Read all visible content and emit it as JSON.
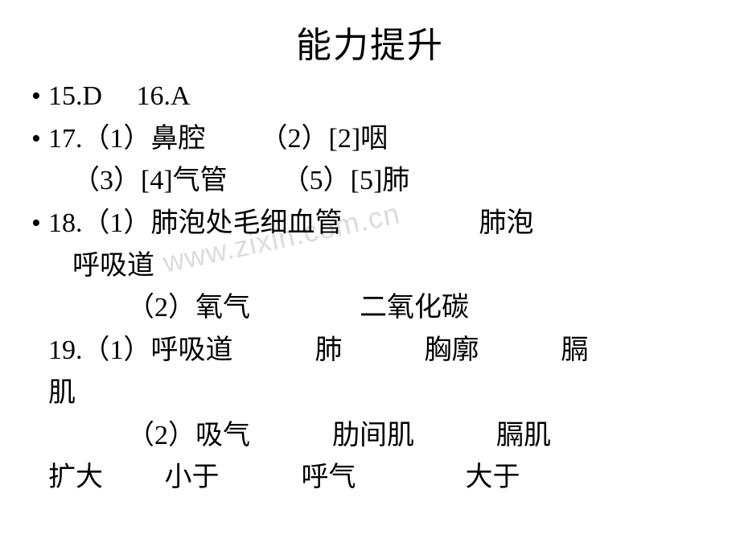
{
  "title": "能力提升",
  "watermark": "www.zixin.com.cn",
  "lines": {
    "l1": "15.D  16.A",
    "l2": "17.（1）鼻腔  （2）[2]咽",
    "l3": "（3）[4]气管  （5）[5]肺",
    "l4": "18.（1）肺泡处毛细血管     肺泡",
    "l5": "呼吸道",
    "l6": "  （2）氧气    二氧化碳",
    "l7": "19.（1）呼吸道   肺   胸廓   膈",
    "l8": "肌",
    "l9": "  （2）吸气   肋间肌   膈肌",
    "l10": "扩大   小于   呼气    大于"
  },
  "colors": {
    "text": "#000000",
    "background": "#ffffff",
    "watermark": "#dcdcdc"
  },
  "fontsize": {
    "title": 44,
    "body": 34
  }
}
